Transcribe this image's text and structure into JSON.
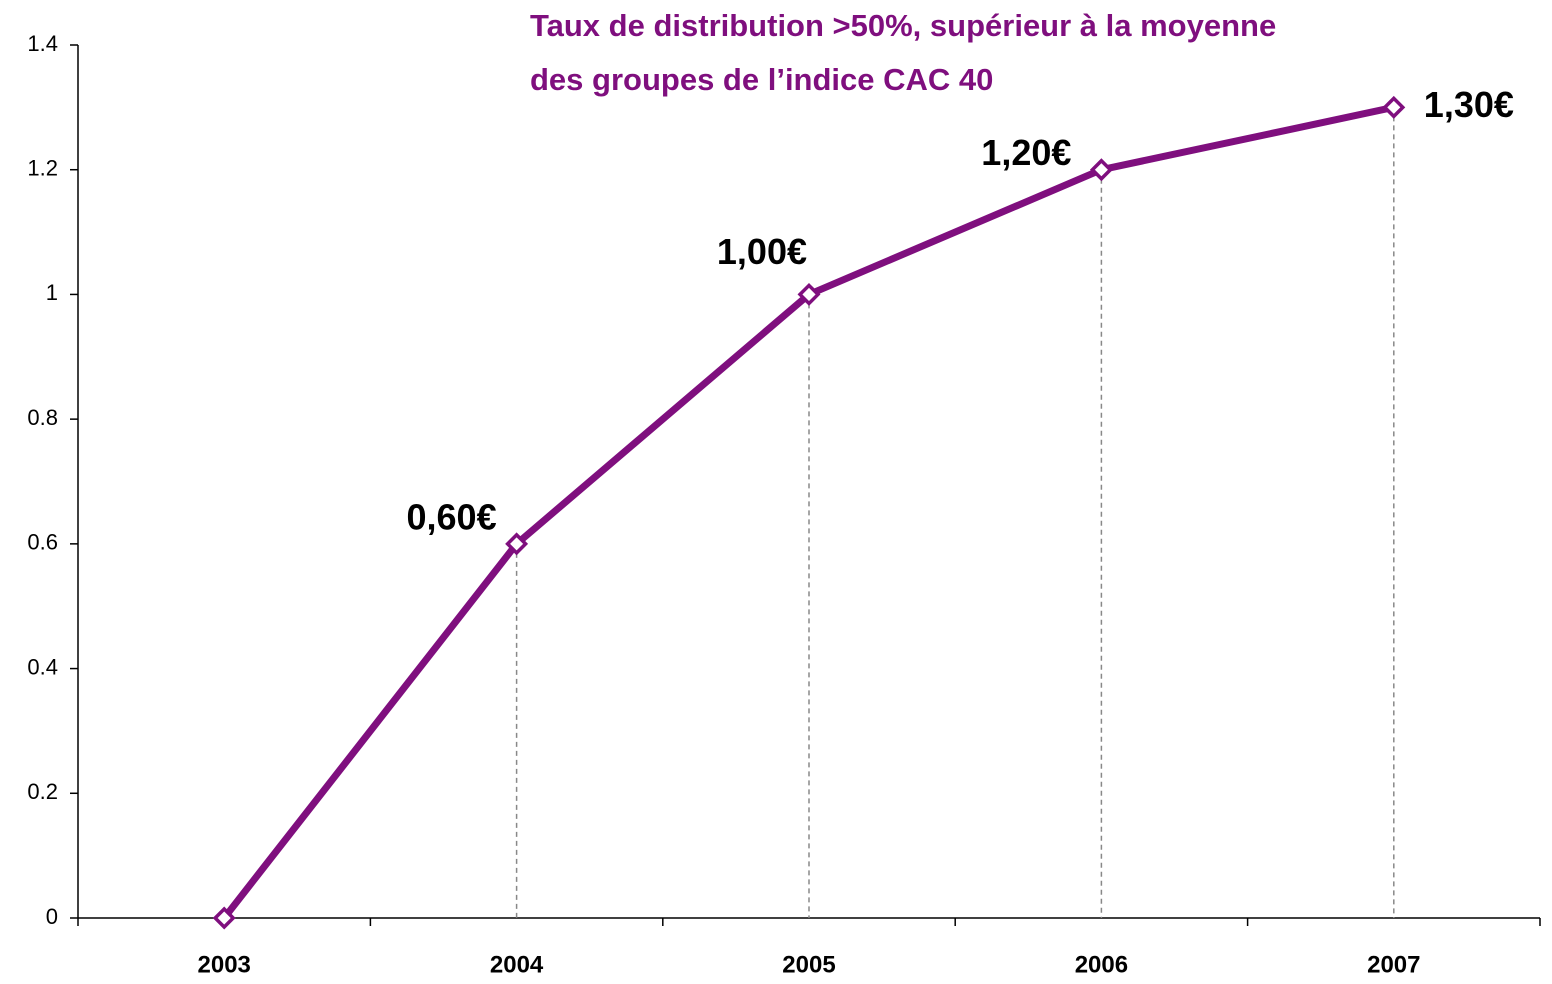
{
  "chart_data": {
    "type": "line",
    "annotation": [
      "Taux de distribution >50%, supérieur à la moyenne",
      "des groupes de l’indice CAC 40"
    ],
    "categories": [
      "2003",
      "2004",
      "2005",
      "2006",
      "2007"
    ],
    "values": [
      0,
      0.6,
      1.0,
      1.2,
      1.3
    ],
    "value_labels": [
      null,
      "0,60€",
      "1,00€",
      "1,20€",
      "1,30€"
    ],
    "color": "#7f0f7e",
    "ylim": [
      0,
      1.4
    ],
    "yticks": [
      0,
      0.2,
      0.4,
      0.6,
      0.8,
      1,
      1.2,
      1.4
    ]
  }
}
